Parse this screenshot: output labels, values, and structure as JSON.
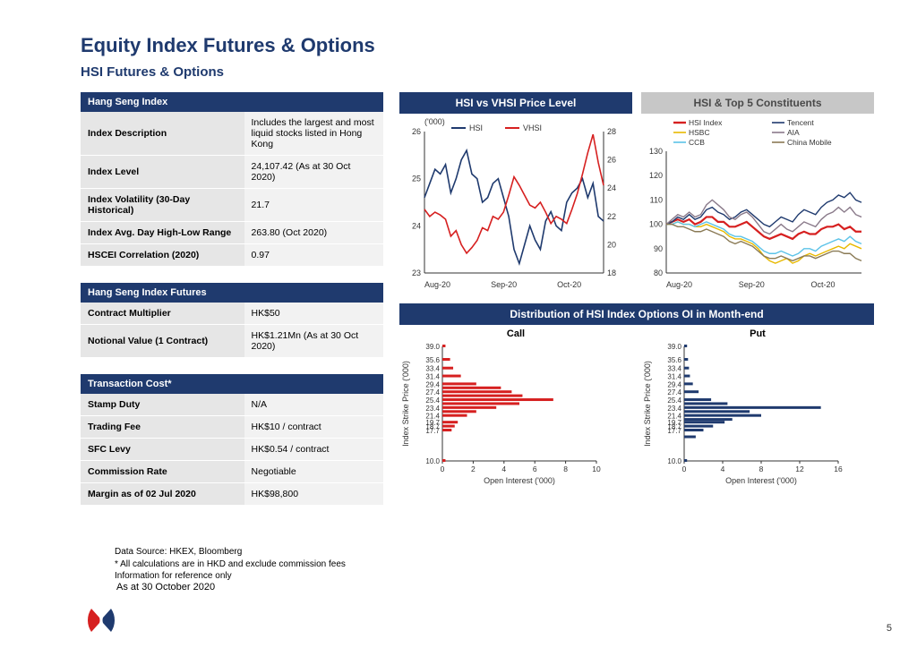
{
  "colors": {
    "navy": "#1f3a6e",
    "title": "#1f3a6e",
    "gray_hdr": "#c7c7c7",
    "gray_hdr_text": "#4a4a4a",
    "row_lab": "#e6e6e6",
    "row_val": "#f2f2f2",
    "hsi": "#1f3a6e",
    "vhsi": "#d62020",
    "axis": "#333333",
    "grid": "#dddddd"
  },
  "titles": {
    "main": "Equity Index Futures & Options",
    "sub": "HSI Futures & Options"
  },
  "table_hsi": {
    "header": "Hang Seng Index",
    "rows": [
      {
        "label": "Index Description",
        "value": "Includes the largest and most liquid stocks listed in Hong Kong"
      },
      {
        "label": "Index Level",
        "value": "24,107.42 (As at 30 Oct 2020)"
      },
      {
        "label": "Index Volatility (30-Day Historical)",
        "value": "21.7"
      },
      {
        "label": "Index Avg. Day High-Low Range",
        "value": "263.80 (Oct 2020)"
      },
      {
        "label": "HSCEI Correlation (2020)",
        "value": "0.97"
      }
    ]
  },
  "table_fut": {
    "header": "Hang Seng Index Futures",
    "rows": [
      {
        "label": "Contract Multiplier",
        "value": "HK$50"
      },
      {
        "label": "Notional Value (1 Contract)",
        "value": "HK$1.21Mn (As at 30 Oct 2020)"
      }
    ]
  },
  "table_cost": {
    "header": "Transaction Cost*",
    "rows": [
      {
        "label": "Stamp Duty",
        "value": "N/A"
      },
      {
        "label": "Trading Fee",
        "value": "HK$10 / contract"
      },
      {
        "label": "SFC Levy",
        "value": "HK$0.54 / contract"
      },
      {
        "label": "Commission Rate",
        "value": "Negotiable"
      },
      {
        "label": "Margin as of 02 Jul 2020",
        "value": "HK$98,800"
      }
    ]
  },
  "chart1": {
    "title": "HSI vs VHSI Price Level",
    "ylabel_left": "('000)",
    "y_left": {
      "min": 23,
      "max": 26,
      "ticks": [
        23,
        24,
        25,
        26
      ]
    },
    "y_right": {
      "min": 18,
      "max": 28,
      "ticks": [
        18,
        20,
        22,
        24,
        26,
        28
      ]
    },
    "x_ticks": [
      "Aug-20",
      "Sep-20",
      "Oct-20"
    ],
    "series": [
      {
        "name": "HSI",
        "color": "#1f3a6e",
        "width": 1.6,
        "data": [
          24.6,
          24.9,
          25.2,
          25.1,
          25.3,
          24.7,
          25.0,
          25.4,
          25.6,
          25.1,
          25.0,
          24.5,
          24.6,
          24.9,
          25.0,
          24.6,
          24.2,
          23.5,
          23.2,
          23.6,
          24.0,
          23.7,
          23.5,
          24.1,
          24.3,
          24.0,
          23.9,
          24.5,
          24.7,
          24.8,
          25.0,
          24.6,
          24.9,
          24.2,
          24.1
        ]
      },
      {
        "name": "VHSI",
        "color": "#d62020",
        "width": 1.6,
        "data": [
          22.5,
          22.0,
          22.3,
          22.1,
          21.8,
          20.6,
          21.0,
          20.0,
          19.4,
          19.8,
          20.3,
          21.2,
          21.0,
          22.0,
          21.8,
          22.3,
          23.5,
          24.8,
          24.2,
          23.5,
          22.8,
          22.6,
          23.0,
          22.3,
          21.5,
          22.0,
          21.8,
          21.5,
          22.5,
          23.6,
          25.0,
          26.5,
          27.8,
          25.8,
          24.2
        ]
      }
    ]
  },
  "chart2": {
    "title": "HSI & Top 5 Constituents",
    "y": {
      "min": 80,
      "max": 130,
      "ticks": [
        80,
        90,
        100,
        110,
        120,
        130
      ]
    },
    "x_ticks": [
      "Aug-20",
      "Sep-20",
      "Oct-20"
    ],
    "series": [
      {
        "name": "HSI Index",
        "color": "#d62020",
        "width": 2.2,
        "data": [
          100,
          101,
          102,
          101,
          102,
          100,
          101,
          103,
          103,
          101,
          101,
          99,
          99,
          100,
          101,
          99,
          97,
          95,
          94,
          95,
          96,
          95,
          94,
          96,
          97,
          96,
          96,
          98,
          99,
          99,
          100,
          98,
          99,
          97,
          97
        ]
      },
      {
        "name": "Tencent",
        "color": "#1f3a6e",
        "width": 1.4,
        "data": [
          100,
          101,
          103,
          102,
          104,
          102,
          103,
          106,
          107,
          105,
          104,
          102,
          103,
          105,
          106,
          104,
          102,
          100,
          99,
          101,
          103,
          102,
          101,
          104,
          106,
          105,
          104,
          107,
          109,
          110,
          112,
          111,
          113,
          110,
          109
        ]
      },
      {
        "name": "HSBC",
        "color": "#e8b900",
        "width": 1.4,
        "data": [
          100,
          100,
          101,
          100,
          100,
          99,
          99,
          100,
          99,
          98,
          97,
          95,
          94,
          94,
          93,
          92,
          90,
          87,
          85,
          84,
          85,
          86,
          84,
          85,
          87,
          88,
          87,
          88,
          89,
          90,
          91,
          90,
          92,
          91,
          90
        ]
      },
      {
        "name": "AIA",
        "color": "#8a7a8a",
        "width": 1.4,
        "data": [
          100,
          102,
          104,
          103,
          105,
          103,
          104,
          108,
          110,
          108,
          106,
          103,
          102,
          104,
          105,
          103,
          100,
          97,
          96,
          98,
          100,
          98,
          97,
          99,
          101,
          100,
          99,
          102,
          104,
          105,
          107,
          105,
          107,
          104,
          103
        ]
      },
      {
        "name": "CCB",
        "color": "#5cc3e8",
        "width": 1.4,
        "data": [
          100,
          100,
          101,
          100,
          100,
          99,
          100,
          101,
          100,
          99,
          98,
          96,
          95,
          95,
          94,
          93,
          91,
          89,
          88,
          88,
          89,
          88,
          87,
          88,
          90,
          90,
          89,
          91,
          92,
          93,
          94,
          93,
          95,
          93,
          92
        ]
      },
      {
        "name": "China Mobile",
        "color": "#8a7a55",
        "width": 1.4,
        "data": [
          100,
          100,
          99,
          99,
          98,
          97,
          97,
          98,
          97,
          96,
          95,
          93,
          92,
          93,
          92,
          91,
          89,
          87,
          86,
          86,
          87,
          86,
          85,
          86,
          87,
          87,
          86,
          87,
          88,
          89,
          89,
          88,
          88,
          86,
          85
        ]
      }
    ]
  },
  "chart3": {
    "title": "Distribution of HSI Index Options OI in Month-end",
    "xlabel": "Open Interest ('000)",
    "ylabel": "Index Strike Price ('000)",
    "y_ticks": [
      10.0,
      17.7,
      18.7,
      19.7,
      21.4,
      23.4,
      25.4,
      27.4,
      29.4,
      31.4,
      33.4,
      35.6,
      39.0
    ],
    "call": {
      "title": "Call",
      "color": "#d62020",
      "x": {
        "min": 0,
        "max": 10,
        "ticks": [
          0,
          2,
          4,
          6,
          8,
          10
        ]
      },
      "bars": [
        {
          "y": 39.0,
          "v": 0.2
        },
        {
          "y": 35.6,
          "v": 0.5
        },
        {
          "y": 33.4,
          "v": 0.7
        },
        {
          "y": 31.4,
          "v": 1.2
        },
        {
          "y": 29.4,
          "v": 2.2
        },
        {
          "y": 28.4,
          "v": 3.8
        },
        {
          "y": 27.4,
          "v": 4.5
        },
        {
          "y": 26.4,
          "v": 5.2
        },
        {
          "y": 25.4,
          "v": 7.2
        },
        {
          "y": 24.4,
          "v": 5.0
        },
        {
          "y": 23.4,
          "v": 3.5
        },
        {
          "y": 22.4,
          "v": 2.2
        },
        {
          "y": 21.4,
          "v": 1.6
        },
        {
          "y": 19.7,
          "v": 1.0
        },
        {
          "y": 18.7,
          "v": 0.8
        },
        {
          "y": 17.7,
          "v": 0.6
        },
        {
          "y": 10.0,
          "v": 0.2
        }
      ]
    },
    "put": {
      "title": "Put",
      "color": "#1f3a6e",
      "x": {
        "min": 0,
        "max": 16,
        "ticks": [
          0,
          4,
          8,
          12,
          16
        ]
      },
      "bars": [
        {
          "y": 39.0,
          "v": 0.3
        },
        {
          "y": 35.6,
          "v": 0.4
        },
        {
          "y": 33.4,
          "v": 0.5
        },
        {
          "y": 31.4,
          "v": 0.6
        },
        {
          "y": 29.4,
          "v": 0.9
        },
        {
          "y": 27.4,
          "v": 1.5
        },
        {
          "y": 25.4,
          "v": 2.8
        },
        {
          "y": 24.4,
          "v": 4.5
        },
        {
          "y": 23.4,
          "v": 14.2
        },
        {
          "y": 22.4,
          "v": 6.8
        },
        {
          "y": 21.4,
          "v": 8.0
        },
        {
          "y": 20.4,
          "v": 5.0
        },
        {
          "y": 19.7,
          "v": 4.2
        },
        {
          "y": 18.7,
          "v": 3.0
        },
        {
          "y": 17.7,
          "v": 2.0
        },
        {
          "y": 16.0,
          "v": 1.2
        },
        {
          "y": 10.0,
          "v": 0.3
        }
      ]
    }
  },
  "footer": {
    "line1": "Data Source: HKEX, Bloomberg",
    "line2": "* All calculations are in HKD and exclude commission fees",
    "line3": "Information for reference only",
    "asof": "As at 30 October 2020",
    "page": "5"
  }
}
